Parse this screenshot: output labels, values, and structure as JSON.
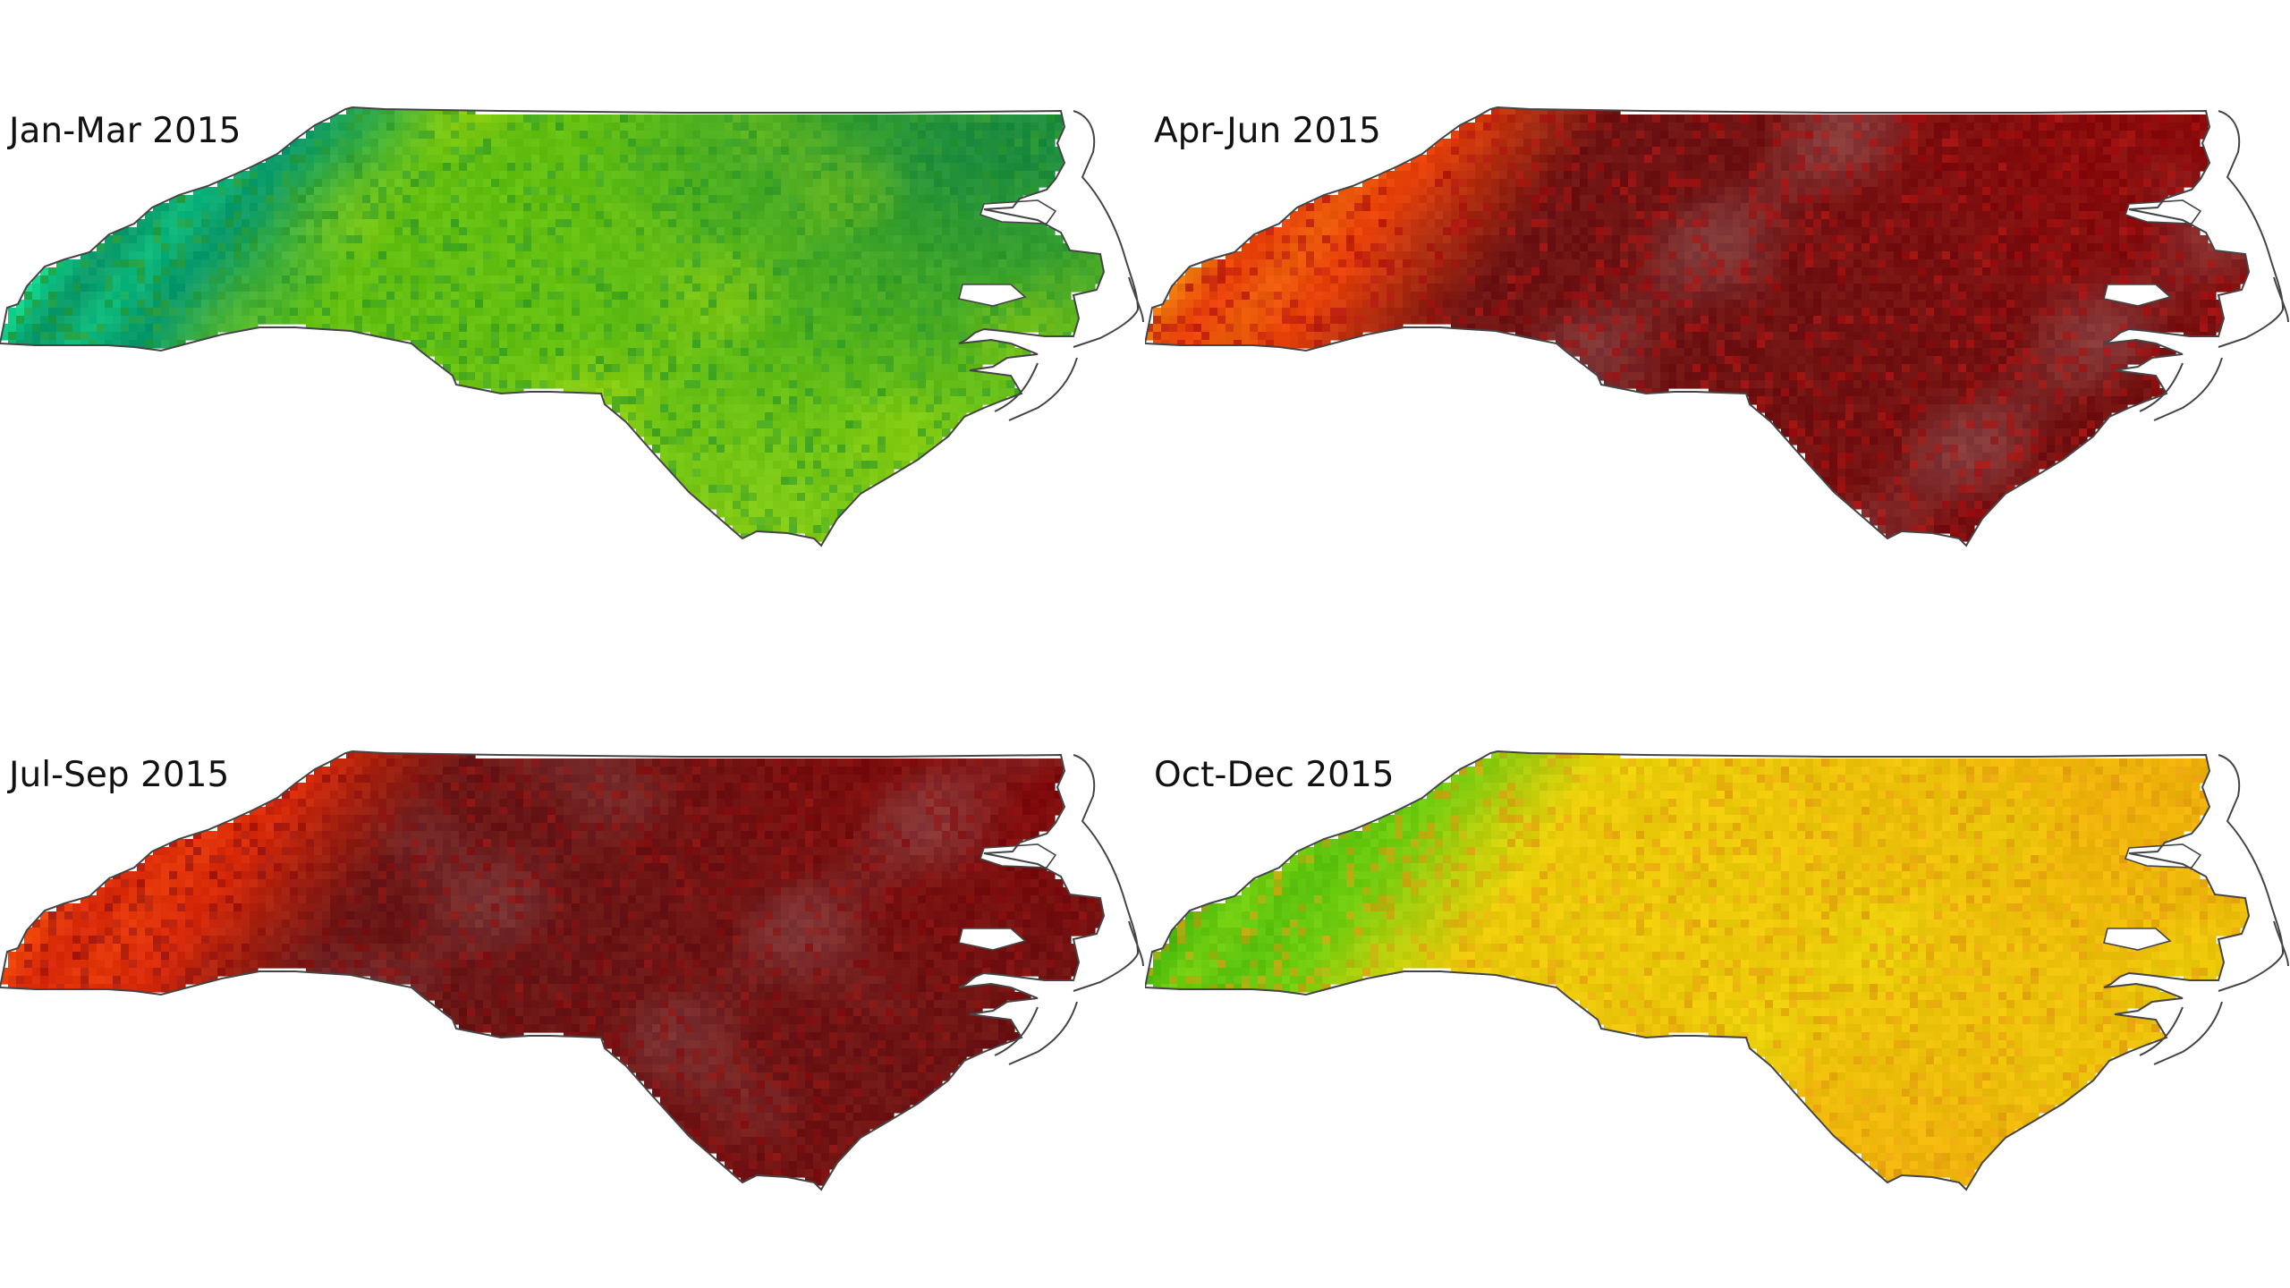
{
  "panels": [
    {
      "title": "Jan-Mar 2015",
      "colors": {
        "mountains": "#0a9a6a",
        "peaks": "#10d890",
        "interior": "#63bf11",
        "east": "#1d8d3e",
        "coast": "#86cc18",
        "highlight": "#b7df0c",
        "speckle": "#2f9a2a"
      }
    },
    {
      "title": "Apr-Jun 2015",
      "colors": {
        "mountains": "#e8410a",
        "peaks": "#f07a0c",
        "interior": "#6f1313",
        "east": "#8a0b0b",
        "coast": "#790f0f",
        "highlight": "#9a6a6a",
        "speckle": "#b01010"
      }
    },
    {
      "title": "Jul-Sep 2015",
      "colors": {
        "mountains": "#d92a0a",
        "peaks": "#f0460a",
        "interior": "#6a1616",
        "east": "#7e0b0b",
        "coast": "#731212",
        "highlight": "#9a6c6c",
        "speckle": "#8f1010"
      }
    },
    {
      "title": "Oct-Dec 2015",
      "colors": {
        "mountains": "#6fcc0f",
        "peaks": "#46b80c",
        "interior": "#ecca0a",
        "east": "#eeb10a",
        "coast": "#efad0c",
        "highlight": "#e6e00a",
        "speckle": "#e59a10"
      }
    }
  ],
  "outline_color": "#444444"
}
